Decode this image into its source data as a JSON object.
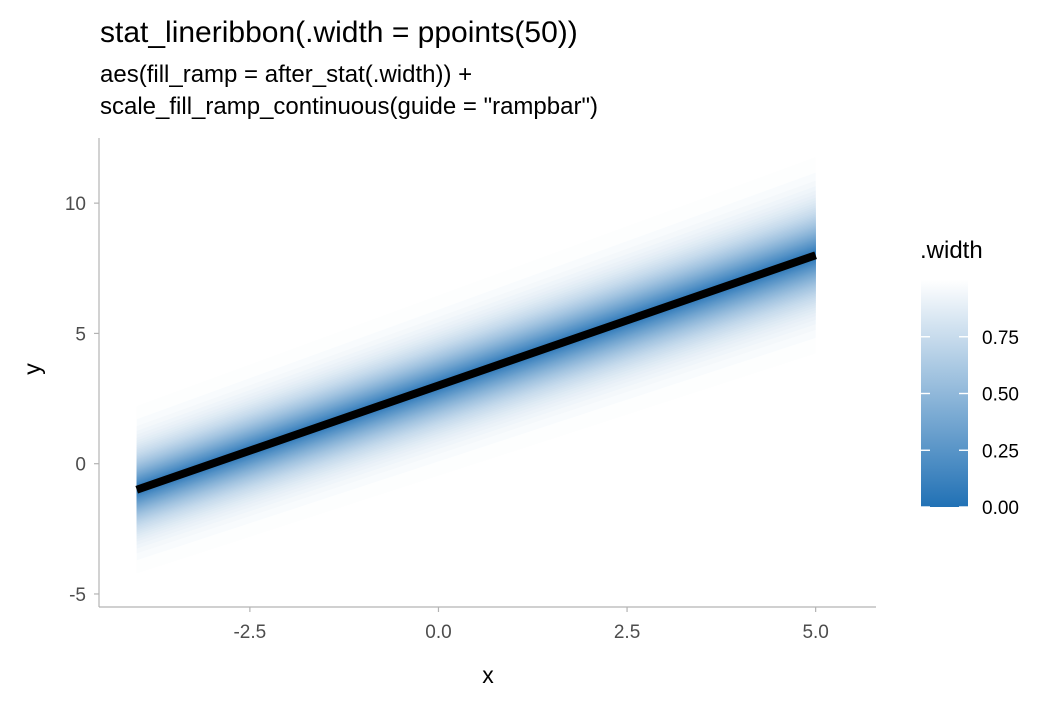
{
  "chart_data": {
    "type": "line",
    "title": "stat_lineribbon(.width = ppoints(50))",
    "subtitle_lines": [
      "aes(fill_ramp = after_stat(.width)) +",
      "scale_fill_ramp_continuous(guide = \"rampbar\")"
    ],
    "xlabel": "x",
    "ylabel": "y",
    "xlim": [
      -4.5,
      5.8
    ],
    "ylim": [
      -5.5,
      12.5
    ],
    "x_ticks": [
      -2.5,
      0.0,
      2.5,
      5.0
    ],
    "x_tick_labels": [
      "-2.5",
      "0.0",
      "2.5",
      "5.0"
    ],
    "y_ticks": [
      -5,
      0,
      5,
      10
    ],
    "y_tick_labels": [
      "-5",
      "0",
      "5",
      "10"
    ],
    "grid": false,
    "series": [
      {
        "x": [
          -4,
          5
        ],
        "y": [
          -1,
          8
        ]
      }
    ],
    "ribbon": {
      "x": [
        -4,
        5
      ],
      "center": [
        -1,
        8
      ],
      "half_width_at_max": [
        2.9,
        3.4
      ],
      "widths_count": 50
    },
    "legend": {
      "title": ".width",
      "position": "right",
      "range": [
        0.01,
        0.99
      ],
      "ticks": [
        0.0,
        0.25,
        0.5,
        0.75
      ],
      "tick_labels": [
        "0.00",
        "0.25",
        "0.50",
        "0.75"
      ]
    },
    "colors": {
      "ramp_low": "#2171b5",
      "ramp_high": "#ffffff",
      "line": "#000000",
      "axis": "#b3b3b3"
    }
  }
}
